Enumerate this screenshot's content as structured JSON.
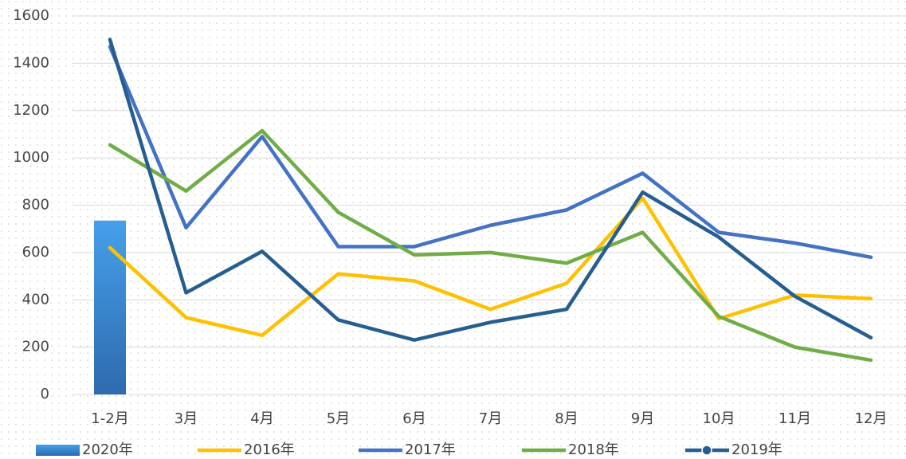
{
  "chart_data": {
    "type": "line",
    "categories": [
      "1-2月",
      "3月",
      "4月",
      "5月",
      "6月",
      "7月",
      "8月",
      "9月",
      "10月",
      "11月",
      "12月"
    ],
    "series": [
      {
        "name": "2020年",
        "type": "bar",
        "color": "#3a86d4",
        "values": [
          735,
          null,
          null,
          null,
          null,
          null,
          null,
          null,
          null,
          null,
          null
        ]
      },
      {
        "name": "2016年",
        "color": "#ffc000",
        "values": [
          620,
          325,
          250,
          510,
          480,
          360,
          470,
          830,
          320,
          420,
          405
        ]
      },
      {
        "name": "2017年",
        "color": "#4472c4",
        "values": [
          1470,
          705,
          1090,
          625,
          625,
          715,
          780,
          935,
          685,
          640,
          580
        ]
      },
      {
        "name": "2018年",
        "color": "#70ad47",
        "values": [
          1055,
          860,
          1115,
          770,
          590,
          600,
          555,
          685,
          330,
          200,
          145
        ]
      },
      {
        "name": "2019年",
        "color": "#255e91",
        "marker": true,
        "values": [
          1500,
          430,
          605,
          315,
          230,
          305,
          360,
          855,
          665,
          415,
          240
        ]
      }
    ],
    "ylim": [
      0,
      1600
    ],
    "yticks": [
      0,
      200,
      400,
      600,
      800,
      1000,
      1200,
      1400,
      1600
    ],
    "grid": true,
    "legend": "bottom"
  }
}
